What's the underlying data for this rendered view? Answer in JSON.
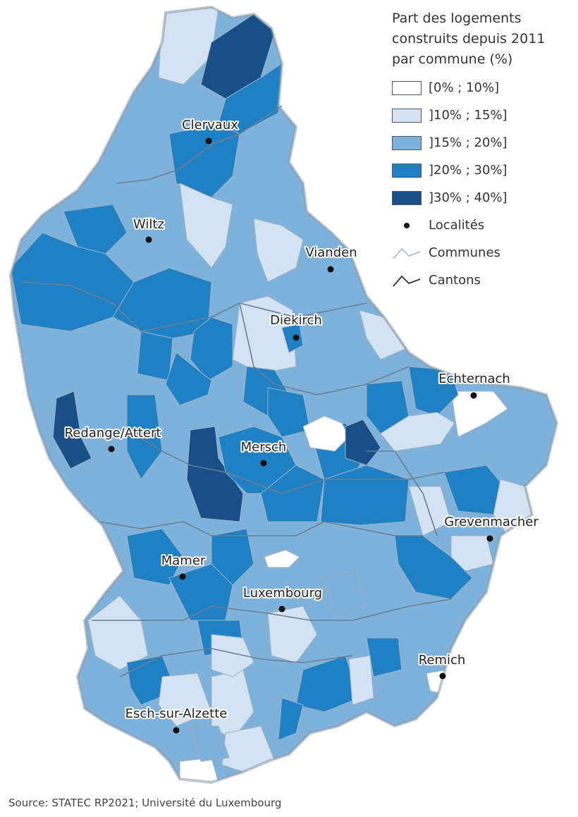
{
  "legend": {
    "title_lines": [
      "Part des logements",
      "construits depuis 2011",
      "par commune (%)"
    ],
    "classes": [
      {
        "label": "[0% ; 10%]",
        "color": "#ffffff"
      },
      {
        "label": "]10% ; 15%]",
        "color": "#d4e3f1"
      },
      {
        "label": "]15% ; 20%]",
        "color": "#7fb2db"
      },
      {
        "label": "]20% ; 30%]",
        "color": "#1f80c4"
      },
      {
        "label": "]30% ; 40%]",
        "color": "#174f86"
      }
    ],
    "localites_label": "Localités",
    "communes_label": "Communes",
    "cantons_label": "Cantons"
  },
  "towns": [
    {
      "name": "Clervaux"
    },
    {
      "name": "Wiltz"
    },
    {
      "name": "Vianden"
    },
    {
      "name": "Diekirch"
    },
    {
      "name": "Echternach"
    },
    {
      "name": "Redange/Attert"
    },
    {
      "name": "Mersch"
    },
    {
      "name": "Grevenmacher"
    },
    {
      "name": "Mamer"
    },
    {
      "name": "Luxembourg"
    },
    {
      "name": "Remich"
    },
    {
      "name": "Esch-sur-Alzette"
    }
  ],
  "source": "Source: STATEC RP2021; Université du Luxembourg"
}
